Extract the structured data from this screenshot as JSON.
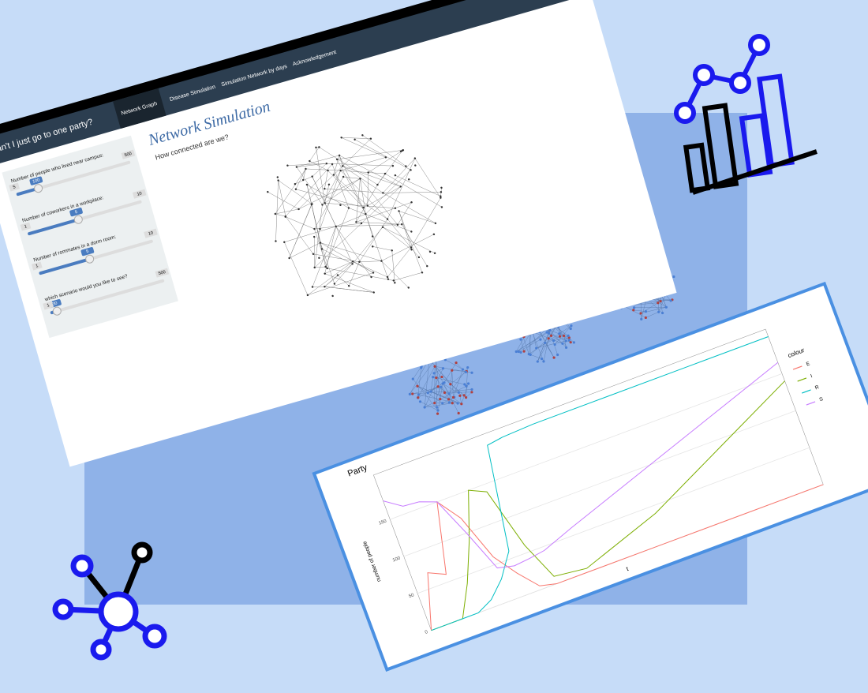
{
  "app": {
    "nav": {
      "brand": "Can't I just go to one party?",
      "tabs": [
        "Network Graph",
        "Disease Simulation",
        "Simulation Network by days",
        "Acknowledgement"
      ]
    },
    "sidebar": {
      "sliders": [
        {
          "label": "Number of people who lived near campus:",
          "min": 5,
          "max": 500,
          "value": 100
        },
        {
          "label": "Number of coworkers in a workplace:",
          "min": 1,
          "max": 10,
          "value": 5
        },
        {
          "label": "Number of rommates in a dorm room:",
          "min": 1,
          "max": 10,
          "value": 5
        },
        {
          "label": "which scenario would you like to see?",
          "min": 1,
          "max": 500,
          "value": 30
        }
      ]
    },
    "main": {
      "title": "Network Simulation",
      "subtitle": "How connected are we?"
    }
  },
  "chart_data": {
    "type": "line",
    "title": "Party",
    "y_label": "number of people",
    "x_label": "t",
    "legend_title": "colour",
    "x": [
      0,
      4,
      8,
      12,
      16,
      20,
      24,
      28,
      32,
      40,
      60,
      80,
      100
    ],
    "series": [
      {
        "name": "E",
        "color": "#F8766D",
        "values": [
          0,
          70,
          60,
          150,
          120,
          60,
          30,
          5,
          0,
          0,
          0,
          0,
          0
        ]
      },
      {
        "name": "I",
        "color": "#7CAE00",
        "values": [
          0,
          0,
          0,
          40,
          90,
          150,
          140,
          60,
          10,
          5,
          40,
          90,
          140
        ]
      },
      {
        "name": "R",
        "color": "#00BFC4",
        "values": [
          0,
          0,
          0,
          0,
          10,
          30,
          60,
          195,
          198,
          200,
          200,
          200,
          200
        ]
      },
      {
        "name": "S",
        "color": "#C77CFF",
        "values": [
          175,
          160,
          158,
          150,
          100,
          45,
          40,
          42,
          45,
          60,
          95,
          130,
          165
        ]
      }
    ],
    "xlim": [
      0,
      100
    ],
    "ylim": [
      0,
      210
    ],
    "yticks": [
      0,
      50,
      100,
      150
    ],
    "grid": true
  }
}
